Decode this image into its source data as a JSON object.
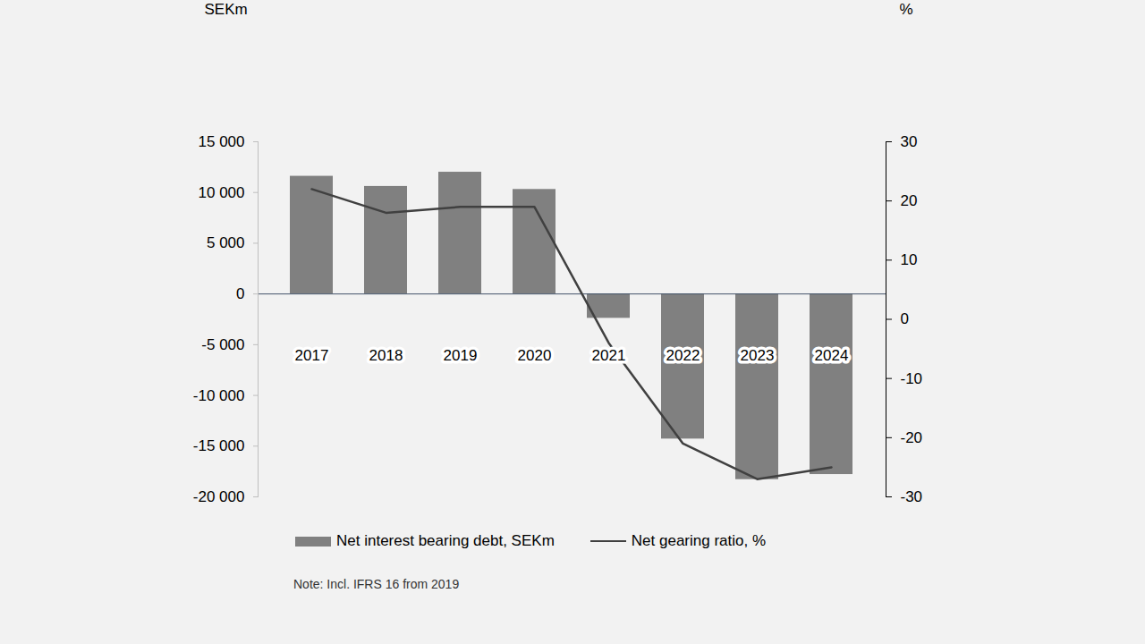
{
  "chart_data": {
    "type": "bar",
    "categories": [
      "2017",
      "2018",
      "2019",
      "2020",
      "2021",
      "2022",
      "2023",
      "2024"
    ],
    "y_label": "SEKm",
    "y2_label": "%",
    "annotation": "Note: Incl. IFRS 16 from 2019",
    "series": [
      {
        "name": "Net interest bearing debt, SEKm",
        "type": "bar",
        "color": "#808080",
        "values": [
          11600,
          10600,
          12000,
          10300,
          -2400,
          -14300,
          -18300,
          -17800
        ]
      },
      {
        "name": "Net gearing ratio, %",
        "type": "line",
        "axis": "y2",
        "color": "#404040",
        "values": [
          22,
          18,
          19,
          19,
          -4,
          -21,
          -27,
          -25
        ]
      }
    ],
    "ylim": [
      -20000,
      15000
    ],
    "yticks": [
      {
        "value": 15000,
        "label": "15 000"
      },
      {
        "value": 10000,
        "label": "10 000"
      },
      {
        "value": 5000,
        "label": "5 000"
      },
      0,
      {
        "value": -5000,
        "label": "-5 000"
      },
      {
        "value": -10000,
        "label": "-10 000"
      },
      {
        "value": -15000,
        "label": "-15 000"
      },
      {
        "value": -20000,
        "label": "-20 000"
      }
    ],
    "y2lim": [
      -30,
      30
    ],
    "y2ticks": [
      -30,
      -20,
      -10,
      0,
      10,
      20,
      30
    ],
    "legend": "bottom"
  }
}
